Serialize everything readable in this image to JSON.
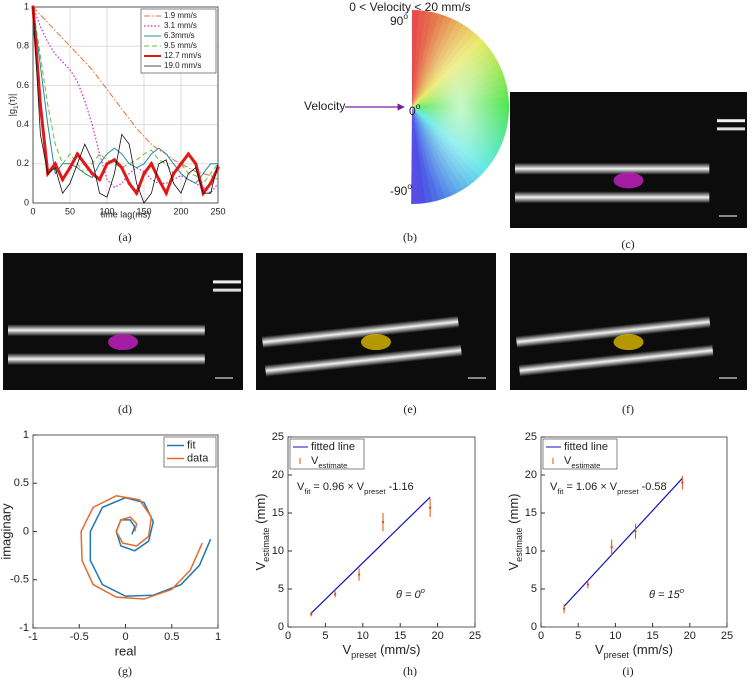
{
  "chart_data": [
    {
      "type": "line",
      "caption": "(a)",
      "xlabel": "time lag(ms)",
      "ylabel": [
        "|g",
        {
          "sub": "1"
        },
        "(τ)|"
      ],
      "x": [
        0,
        10,
        20,
        30,
        40,
        50,
        60,
        70,
        80,
        90,
        100,
        110,
        120,
        130,
        140,
        150,
        160,
        170,
        180,
        190,
        200,
        210,
        220,
        230,
        240,
        250
      ],
      "xlim": [
        0,
        250
      ],
      "ylim": [
        0,
        1
      ],
      "xticks": [
        0,
        50,
        100,
        150,
        200,
        250
      ],
      "yticks": [
        0,
        0.2,
        0.4,
        0.6,
        0.8,
        1
      ],
      "grid": true,
      "legend": "upper right",
      "series": [
        {
          "name": "1.9 mm/s",
          "color": "#e0703a",
          "linestyle": "dashdot",
          "linewidth": 1,
          "values": [
            1,
            0.96,
            0.92,
            0.88,
            0.84,
            0.8,
            0.76,
            0.72,
            0.68,
            0.63,
            0.58,
            0.53,
            0.48,
            0.43,
            0.38,
            0.34,
            0.3,
            0.27,
            0.25,
            0.22,
            0.2,
            0.18,
            0.16,
            0.15,
            0.14,
            0.12
          ]
        },
        {
          "name": "3.1 mm/s",
          "color": "#cc22cc",
          "linestyle": "dotted",
          "linewidth": 1.2,
          "values": [
            1,
            0.9,
            0.82,
            0.76,
            0.72,
            0.68,
            0.62,
            0.52,
            0.4,
            0.25,
            0.12,
            0.08,
            0.1,
            0.15,
            0.18,
            0.16,
            0.12,
            0.1,
            0.1,
            0.12,
            0.14,
            0.12,
            0.1,
            0.08,
            0.05,
            0.1
          ]
        },
        {
          "name": "6.3mm/s",
          "color": "#2a8a9a",
          "linestyle": "solid",
          "linewidth": 1,
          "values": [
            1,
            0.7,
            0.4,
            0.15,
            0.2,
            0.2,
            0.18,
            0.15,
            0.13,
            0.2,
            0.25,
            0.28,
            0.25,
            0.2,
            0.18,
            0.2,
            0.25,
            0.28,
            0.25,
            0.2,
            0.15,
            0.12,
            0.1,
            0.15,
            0.2,
            0.2
          ]
        },
        {
          "name": "9.5 mm/s",
          "color": "#66bb44",
          "linestyle": "dashed",
          "linewidth": 1,
          "values": [
            1,
            0.75,
            0.5,
            0.3,
            0.2,
            0.25,
            0.2,
            0.15,
            0.2,
            0.25,
            0.22,
            0.2,
            0.18,
            0.2,
            0.22,
            0.25,
            0.27,
            0.22,
            0.2,
            0.15,
            0.2,
            0.15,
            0.14,
            0.1,
            0.15,
            0.2
          ]
        },
        {
          "name": "12.7 mm/s",
          "color": "#e01818",
          "linestyle": "solid",
          "linewidth": 3,
          "values": [
            1,
            0.5,
            0.15,
            0.2,
            0.12,
            0.18,
            0.25,
            0.2,
            0.15,
            0.12,
            0.2,
            0.22,
            0.18,
            0.1,
            0.05,
            0.15,
            0.2,
            0.12,
            0.05,
            0.15,
            0.2,
            0.25,
            0.2,
            0.05,
            0.1,
            0.18
          ]
        },
        {
          "name": "19.0 mm/s",
          "color": "#111111",
          "linestyle": "solid",
          "linewidth": 0.8,
          "values": [
            1,
            0.35,
            0.15,
            0.18,
            0.05,
            0.1,
            0.2,
            0.3,
            0.22,
            0.05,
            0.03,
            0.15,
            0.35,
            0.3,
            0.1,
            0,
            0.05,
            0.2,
            0.22,
            0.1,
            0.05,
            0.15,
            0.18,
            0.05,
            0.05,
            0.2
          ]
        }
      ]
    },
    {
      "type": "colorwheel",
      "caption": "(b)",
      "title": "0 < Velocity < 20 mm/s",
      "arrow_label": "Velocity",
      "angle_labels": [
        [
          "90",
          {
            "sup": "o"
          }
        ],
        [
          "0",
          {
            "sup": "o"
          }
        ],
        [
          "-90",
          {
            "sup": "o"
          }
        ]
      ]
    },
    {
      "type": "line",
      "caption": "(g)",
      "xlabel": "real",
      "ylabel": "imaginary",
      "xlim": [
        -1,
        1
      ],
      "ylim": [
        -1,
        1
      ],
      "xticks": [
        -1,
        -0.5,
        0,
        0.5,
        1
      ],
      "yticks": [
        -1,
        -0.5,
        0,
        0.5,
        1
      ],
      "grid": false,
      "legend": "upper right",
      "series": [
        {
          "name": "fit",
          "color": "#1f77b4",
          "linestyle": "solid",
          "linewidth": 1.5,
          "x": [
            0.92,
            0.8,
            0.6,
            0.3,
            0,
            -0.25,
            -0.38,
            -0.38,
            -0.25,
            0,
            0.2,
            0.3,
            0.25,
            0.1,
            -0.05,
            -0.1,
            -0.05,
            0.05,
            0.1,
            0.07
          ],
          "values": [
            -0.08,
            -0.35,
            -0.55,
            -0.66,
            -0.67,
            -0.55,
            -0.3,
            0,
            0.25,
            0.35,
            0.3,
            0.1,
            -0.1,
            -0.2,
            -0.15,
            0,
            0.12,
            0.12,
            0.05,
            -0.03
          ]
        },
        {
          "name": "data",
          "color": "#e36c2b",
          "linestyle": "solid",
          "linewidth": 1.5,
          "x": [
            0.83,
            0.7,
            0.5,
            0.2,
            -0.1,
            -0.35,
            -0.47,
            -0.48,
            -0.35,
            -0.1,
            0.15,
            0.28,
            0.25,
            0.12,
            -0.03,
            -0.1,
            -0.05,
            0.05,
            0.12,
            0.1
          ],
          "values": [
            -0.12,
            -0.4,
            -0.6,
            -0.7,
            -0.68,
            -0.55,
            -0.3,
            0,
            0.25,
            0.37,
            0.33,
            0.15,
            -0.05,
            -0.15,
            -0.12,
            0,
            0.12,
            0.15,
            0.08,
            0
          ]
        }
      ]
    },
    {
      "type": "scatter",
      "caption": "(h)",
      "xlabel": [
        "V",
        {
          "sub": "preset"
        },
        " (mm/s)"
      ],
      "ylabel": [
        "V",
        {
          "sub": "estimate"
        },
        " (mm)"
      ],
      "xlim": [
        0,
        25
      ],
      "ylim": [
        0,
        25
      ],
      "xticks": [
        0,
        5,
        10,
        15,
        20,
        25
      ],
      "yticks": [
        0,
        5,
        10,
        15,
        20,
        25
      ],
      "grid": false,
      "legend": "upper left",
      "annotations": [
        [
          "V",
          {
            "sub": "fit"
          },
          " = 0.96 × V",
          {
            "sub": "preset"
          },
          " -1.16"
        ],
        [
          "θ = 0",
          {
            "sup": "o"
          }
        ]
      ],
      "series": [
        {
          "name": "fitted line",
          "kind": "line",
          "color": "#1010c0",
          "x": [
            3.1,
            19
          ],
          "values": [
            1.82,
            17.08
          ]
        },
        {
          "name": [
            "V",
            {
              "sub": "estimate"
            }
          ],
          "kind": "errorbar",
          "color": "#d95319",
          "x": [
            3.1,
            6.3,
            9.5,
            12.7,
            19
          ],
          "values": [
            1.7,
            4.3,
            6.9,
            13.8,
            15.7
          ],
          "errors": [
            0.3,
            0.4,
            0.8,
            1.2,
            1.2
          ]
        }
      ]
    },
    {
      "type": "scatter",
      "caption": "(i)",
      "xlabel": [
        "V",
        {
          "sub": "preset"
        },
        " (mm/s)"
      ],
      "ylabel": [
        "V",
        {
          "sub": "estimate"
        },
        " (mm)"
      ],
      "xlim": [
        0,
        25
      ],
      "ylim": [
        0,
        25
      ],
      "xticks": [
        0,
        5,
        10,
        15,
        20,
        25
      ],
      "yticks": [
        0,
        5,
        10,
        15,
        20,
        25
      ],
      "grid": false,
      "legend": "upper left",
      "annotations": [
        [
          "V",
          {
            "sub": "fit"
          },
          " = 1.06 × V",
          {
            "sub": "preset"
          },
          " -0.58"
        ],
        [
          "θ = 15",
          {
            "sup": "o"
          }
        ]
      ],
      "series": [
        {
          "name": "fitted line",
          "kind": "line",
          "color": "#1010c0",
          "x": [
            3.1,
            19
          ],
          "values": [
            2.71,
            19.56
          ]
        },
        {
          "name": [
            "V",
            {
              "sub": "estimate"
            }
          ],
          "kind": "errorbar",
          "color": "#d95319",
          "x": [
            3.1,
            6.3,
            9.5,
            12.7,
            19
          ],
          "values": [
            2.4,
            5.6,
            10.5,
            12.6,
            19
          ],
          "errors": [
            0.6,
            0.5,
            1,
            1,
            0.9
          ]
        }
      ]
    }
  ],
  "images": [
    {
      "caption": "(c)"
    },
    {
      "caption": "(d)"
    },
    {
      "caption": "(e)"
    },
    {
      "caption": "(f)"
    }
  ]
}
